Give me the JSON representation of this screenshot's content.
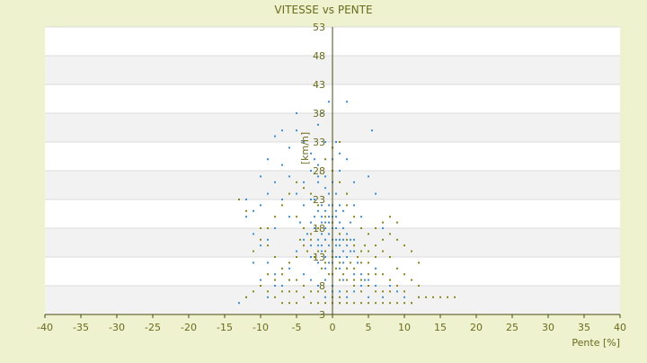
{
  "chart_data": {
    "type": "scatter",
    "title": "VITESSE vs PENTE",
    "xlabel": "Pente [%]",
    "ylabel": "[km/h]",
    "xlim": [
      -40,
      40
    ],
    "ylim": [
      3,
      53
    ],
    "xticks": [
      -40,
      -35,
      -30,
      -25,
      -20,
      -15,
      -10,
      -5,
      0,
      5,
      10,
      15,
      20,
      25,
      30,
      35,
      40
    ],
    "yticks": [
      3,
      8,
      13,
      18,
      23,
      28,
      33,
      38,
      43,
      48,
      53
    ],
    "grid": true,
    "colors": {
      "series_blue": "#3b8fdc",
      "series_olive": "#8a8a14",
      "axis_text": "#6b6b1f",
      "background": "#eef2cf",
      "band": "#f2f2f2"
    },
    "series": [
      {
        "color": "#3b8fdc",
        "points": [
          [
            -1.5,
            19
          ],
          [
            -0.5,
            22
          ],
          [
            0.5,
            18
          ],
          [
            -2,
            16
          ],
          [
            1,
            15
          ],
          [
            0,
            20
          ],
          [
            -1,
            25
          ],
          [
            1.5,
            21
          ],
          [
            2,
            17
          ],
          [
            -2.5,
            20
          ],
          [
            -3,
            23
          ],
          [
            -1.5,
            14
          ],
          [
            0.5,
            13
          ],
          [
            1,
            19
          ],
          [
            -0.5,
            17
          ],
          [
            2.5,
            14
          ],
          [
            -2,
            21
          ],
          [
            0,
            16
          ],
          [
            1.5,
            12
          ],
          [
            -1,
            18
          ],
          [
            -3.5,
            17
          ],
          [
            -4,
            22
          ],
          [
            -2,
            26
          ],
          [
            0.5,
            24
          ],
          [
            3,
            16
          ],
          [
            2,
            11
          ],
          [
            -0.5,
            12
          ],
          [
            -1.5,
            15
          ],
          [
            1,
            22
          ],
          [
            -2.5,
            18
          ],
          [
            0,
            10
          ],
          [
            1.5,
            9
          ],
          [
            3.5,
            12
          ],
          [
            4,
            10
          ],
          [
            -1,
            11
          ],
          [
            2.5,
            19
          ],
          [
            -3,
            13
          ],
          [
            -4.5,
            19
          ],
          [
            -5,
            24
          ],
          [
            -6,
            27
          ],
          [
            -7,
            29
          ],
          [
            -8,
            26
          ],
          [
            -9,
            24
          ],
          [
            -10,
            22
          ],
          [
            -11,
            21
          ],
          [
            -12,
            23
          ],
          [
            -13,
            23
          ],
          [
            -6,
            32
          ],
          [
            -5,
            35
          ],
          [
            -4,
            33
          ],
          [
            -3,
            31
          ],
          [
            -2,
            29
          ],
          [
            -1,
            27
          ],
          [
            0,
            30
          ],
          [
            -5,
            38
          ],
          [
            -7,
            35
          ],
          [
            -8,
            34
          ],
          [
            -9,
            30
          ],
          [
            -10,
            27
          ],
          [
            -12,
            20
          ],
          [
            -11,
            17
          ],
          [
            -10,
            15
          ],
          [
            -9,
            12
          ],
          [
            -8,
            10
          ],
          [
            -12,
            6
          ],
          [
            -13,
            5
          ],
          [
            -9,
            6
          ],
          [
            -7,
            8
          ],
          [
            -6,
            11
          ],
          [
            -5,
            14
          ],
          [
            -4,
            16
          ],
          [
            3,
            7
          ],
          [
            4,
            8
          ],
          [
            5,
            9
          ],
          [
            6,
            8
          ],
          [
            5,
            6
          ],
          [
            2,
            6
          ],
          [
            1,
            5
          ],
          [
            0,
            7
          ],
          [
            -1,
            6
          ],
          [
            -2,
            8
          ],
          [
            -3,
            9
          ],
          [
            7,
            18
          ],
          [
            6,
            24
          ],
          [
            5,
            27
          ],
          [
            3,
            26
          ],
          [
            2,
            24
          ],
          [
            4,
            20
          ],
          [
            5.5,
            35
          ],
          [
            4.5,
            9
          ],
          [
            -0.5,
            40
          ],
          [
            2,
            40
          ],
          [
            -1.5,
            38
          ],
          [
            -2,
            36
          ],
          [
            0.5,
            33
          ],
          [
            1,
            31
          ],
          [
            -3,
            28
          ],
          [
            -2,
            27
          ],
          [
            3,
            22
          ],
          [
            0,
            26
          ],
          [
            -4,
            26
          ],
          [
            -2.5,
            30
          ],
          [
            -1,
            33
          ],
          [
            1,
            28
          ],
          [
            2,
            30
          ],
          [
            -6,
            20
          ],
          [
            -7,
            23
          ],
          [
            -8,
            18
          ],
          [
            -9,
            16
          ],
          [
            -11,
            12
          ],
          [
            -10,
            9
          ],
          [
            -8,
            8
          ],
          [
            -6,
            9
          ],
          [
            -4,
            10
          ],
          [
            -1,
            9
          ],
          [
            0,
            8
          ],
          [
            1,
            7
          ],
          [
            3,
            10
          ],
          [
            6,
            11
          ],
          [
            8,
            8
          ],
          [
            7,
            6
          ],
          [
            9,
            7
          ],
          [
            10,
            6
          ],
          [
            11,
            5
          ],
          [
            12,
            6
          ],
          [
            -3,
            19
          ],
          [
            -1,
            21
          ],
          [
            1,
            17
          ],
          [
            2,
            13
          ],
          [
            0,
            14
          ],
          [
            -2,
            12
          ],
          [
            -0.5,
            19
          ],
          [
            0.5,
            21
          ],
          [
            1.5,
            16
          ],
          [
            -1.5,
            17
          ],
          [
            -0.5,
            15
          ],
          [
            0.5,
            15
          ],
          [
            1,
            13
          ],
          [
            -1,
            13
          ],
          [
            0,
            12
          ],
          [
            0,
            22
          ],
          [
            -0.5,
            24
          ],
          [
            0.5,
            20
          ],
          [
            -1,
            19
          ],
          [
            1,
            11
          ],
          [
            -2,
            15
          ],
          [
            2,
            15
          ],
          [
            -3,
            15
          ],
          [
            3,
            14
          ],
          [
            -1.5,
            22
          ],
          [
            1.5,
            18
          ],
          [
            -2.5,
            23
          ],
          [
            2.5,
            16
          ],
          [
            0,
            18
          ],
          [
            -0.5,
            20
          ],
          [
            0.5,
            16
          ],
          [
            -1,
            16
          ],
          [
            1,
            16
          ],
          [
            -1.5,
            20
          ],
          [
            1.5,
            14
          ]
        ]
      },
      {
        "color": "#8a8a14",
        "points": [
          [
            -13,
            23
          ],
          [
            -12,
            21
          ],
          [
            -10,
            18
          ],
          [
            -9,
            15
          ],
          [
            -8,
            13
          ],
          [
            -7,
            11
          ],
          [
            -6,
            9
          ],
          [
            -5,
            7
          ],
          [
            -4,
            6
          ],
          [
            -3,
            5
          ],
          [
            -2,
            5
          ],
          [
            -1,
            5
          ],
          [
            0,
            5
          ],
          [
            1,
            5
          ],
          [
            2,
            5
          ],
          [
            3,
            5
          ],
          [
            4,
            5
          ],
          [
            5,
            5
          ],
          [
            6,
            5
          ],
          [
            7,
            5
          ],
          [
            8,
            5
          ],
          [
            9,
            5
          ],
          [
            10,
            5
          ],
          [
            11,
            5
          ],
          [
            12,
            6
          ],
          [
            13,
            6
          ],
          [
            14,
            6
          ],
          [
            15,
            6
          ],
          [
            16,
            6
          ],
          [
            17,
            6
          ],
          [
            -10,
            8
          ],
          [
            -9,
            7
          ],
          [
            -8,
            6
          ],
          [
            -7,
            5
          ],
          [
            -6,
            5
          ],
          [
            -5,
            5
          ],
          [
            -11,
            7
          ],
          [
            -12,
            6
          ],
          [
            -9,
            10
          ],
          [
            -8,
            9
          ],
          [
            -7,
            7
          ],
          [
            -6,
            7
          ],
          [
            -5,
            9
          ],
          [
            -4,
            8
          ],
          [
            -3,
            7
          ],
          [
            -2,
            7
          ],
          [
            -1,
            7
          ],
          [
            0,
            6
          ],
          [
            1,
            6
          ],
          [
            2,
            7
          ],
          [
            3,
            8
          ],
          [
            4,
            9
          ],
          [
            5,
            10
          ],
          [
            6,
            10
          ],
          [
            7,
            10
          ],
          [
            8,
            9
          ],
          [
            9,
            8
          ],
          [
            10,
            7
          ],
          [
            11,
            9
          ],
          [
            12,
            8
          ],
          [
            5,
            12
          ],
          [
            6,
            13
          ],
          [
            7,
            14
          ],
          [
            8,
            13
          ],
          [
            9,
            11
          ],
          [
            10,
            10
          ],
          [
            4,
            14
          ],
          [
            3,
            15
          ],
          [
            2,
            16
          ],
          [
            1,
            17
          ],
          [
            0,
            19
          ],
          [
            -1,
            20
          ],
          [
            -2,
            22
          ],
          [
            -3,
            24
          ],
          [
            -4,
            25
          ],
          [
            -5,
            26
          ],
          [
            -6,
            24
          ],
          [
            -7,
            22
          ],
          [
            -8,
            20
          ],
          [
            -9,
            18
          ],
          [
            -10,
            16
          ],
          [
            -11,
            14
          ],
          [
            -5,
            20
          ],
          [
            -4,
            18
          ],
          [
            -3,
            16
          ],
          [
            -2,
            14
          ],
          [
            -1,
            12
          ],
          [
            0,
            10
          ],
          [
            1,
            9
          ],
          [
            2,
            9
          ],
          [
            3,
            11
          ],
          [
            4,
            12
          ],
          [
            5,
            14
          ],
          [
            6,
            15
          ],
          [
            7,
            16
          ],
          [
            8,
            17
          ],
          [
            9,
            16
          ],
          [
            10,
            15
          ],
          [
            11,
            14
          ],
          [
            12,
            12
          ],
          [
            0,
            28
          ],
          [
            1,
            26
          ],
          [
            2,
            24
          ],
          [
            -1,
            30
          ],
          [
            0,
            32
          ],
          [
            1,
            33
          ],
          [
            2,
            22
          ],
          [
            3,
            20
          ],
          [
            4,
            18
          ],
          [
            5,
            17
          ],
          [
            6,
            18
          ],
          [
            7,
            19
          ],
          [
            8,
            20
          ],
          [
            9,
            19
          ],
          [
            -2,
            18
          ],
          [
            -3,
            17
          ],
          [
            -4,
            15
          ],
          [
            -5,
            13
          ],
          [
            -6,
            12
          ],
          [
            -7,
            10
          ],
          [
            0,
            13
          ],
          [
            1,
            12
          ],
          [
            -1,
            14
          ],
          [
            2,
            11
          ],
          [
            3,
            9
          ],
          [
            4,
            7
          ],
          [
            5,
            8
          ],
          [
            6,
            7
          ],
          [
            7,
            7
          ],
          [
            8,
            7
          ],
          [
            -0.5,
            10
          ],
          [
            0.5,
            11
          ],
          [
            1.5,
            10
          ],
          [
            2.5,
            12
          ],
          [
            3.5,
            13
          ],
          [
            4.5,
            15
          ],
          [
            -1.5,
            11
          ],
          [
            -2.5,
            13
          ],
          [
            -3.5,
            14
          ],
          [
            -4.5,
            16
          ]
        ]
      }
    ]
  }
}
